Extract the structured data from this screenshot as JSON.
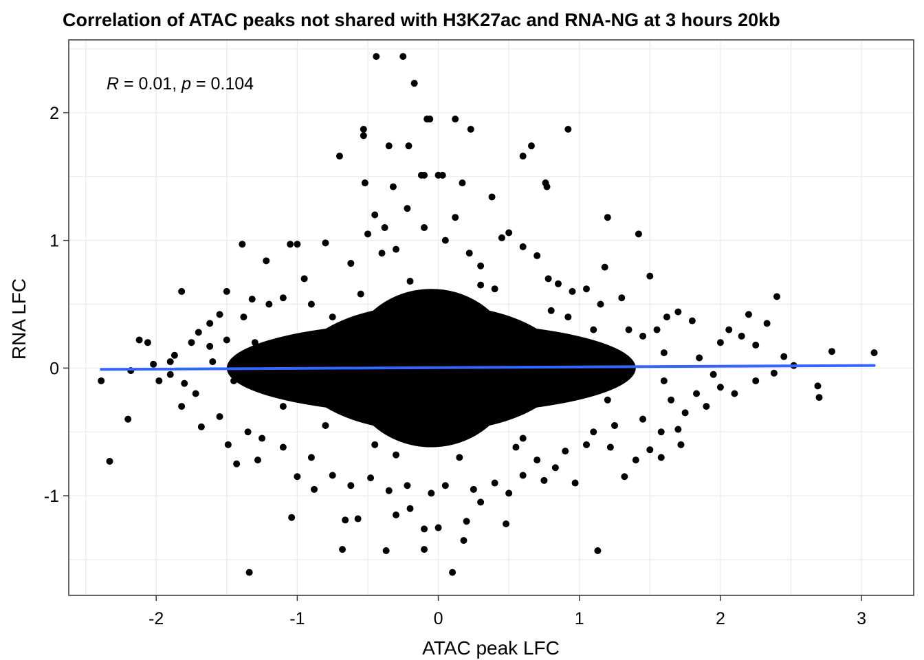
{
  "chart_data": {
    "type": "scatter",
    "title": "Correlation of ATAC peaks not shared with H3K27ac and RNA-NG  at 3 hours 20kb",
    "xlabel": "ATAC peak LFC",
    "ylabel": "RNA LFC",
    "xlim": [
      -2.62,
      3.37
    ],
    "ylim": [
      -1.78,
      2.57
    ],
    "xticks": [
      -2,
      -1,
      0,
      1,
      2,
      3
    ],
    "xtick_labels": [
      "-2",
      "-1",
      "0",
      "1",
      "2",
      "3"
    ],
    "yticks": [
      -1,
      0,
      1,
      2
    ],
    "ytick_labels": [
      "-1",
      "0",
      "1",
      "2"
    ],
    "grid": true,
    "annotation": {
      "r_symbol": "R",
      "r_text": " = 0.01, ",
      "p_symbol": "p",
      "p_text": " = 0.104"
    },
    "fit_line": {
      "color": "#3366ff",
      "x": [
        -2.39,
        3.09
      ],
      "y": [
        -0.01,
        0.02
      ]
    },
    "point_color": "#000000",
    "core_cloud": {
      "center": [
        -0.05,
        0.0
      ],
      "ellipses": [
        {
          "rx": 0.95,
          "ry": 0.5
        },
        {
          "rx": 1.45,
          "ry": 0.36
        },
        {
          "rx": 0.6,
          "ry": 0.62
        }
      ]
    },
    "points": [
      [
        -0.44,
        2.44
      ],
      [
        -0.25,
        2.44
      ],
      [
        -0.17,
        2.23
      ],
      [
        -0.08,
        1.95
      ],
      [
        -0.06,
        1.95
      ],
      [
        0.12,
        1.95
      ],
      [
        0.23,
        1.87
      ],
      [
        0.92,
        1.87
      ],
      [
        -0.53,
        1.87
      ],
      [
        -0.53,
        1.82
      ],
      [
        -0.35,
        1.74
      ],
      [
        -0.21,
        1.74
      ],
      [
        0.66,
        1.74
      ],
      [
        -0.7,
        1.66
      ],
      [
        0.6,
        1.66
      ],
      [
        -0.12,
        1.51
      ],
      [
        -0.1,
        1.51
      ],
      [
        0.0,
        1.51
      ],
      [
        0.03,
        1.51
      ],
      [
        0.17,
        1.45
      ],
      [
        0.76,
        1.45
      ],
      [
        -0.52,
        1.45
      ],
      [
        0.77,
        1.42
      ],
      [
        -0.32,
        1.42
      ],
      [
        0.38,
        1.34
      ],
      [
        -1.0,
        0.97
      ],
      [
        -1.05,
        0.97
      ],
      [
        -1.39,
        0.97
      ],
      [
        -0.8,
        0.98
      ],
      [
        1.42,
        1.05
      ],
      [
        1.18,
        0.79
      ],
      [
        1.5,
        0.72
      ],
      [
        1.2,
        1.18
      ],
      [
        -1.22,
        0.84
      ],
      [
        -1.82,
        0.6
      ],
      [
        -1.5,
        0.6
      ],
      [
        -1.32,
        0.54
      ],
      [
        2.4,
        0.56
      ],
      [
        2.33,
        0.35
      ],
      [
        2.2,
        0.42
      ],
      [
        1.8,
        0.37
      ],
      [
        1.62,
        0.4
      ],
      [
        1.7,
        0.44
      ],
      [
        2.06,
        0.3
      ],
      [
        2.15,
        0.25
      ],
      [
        2.0,
        0.2
      ],
      [
        2.25,
        0.18
      ],
      [
        2.45,
        0.09
      ],
      [
        2.52,
        0.02
      ],
      [
        2.38,
        -0.04
      ],
      [
        2.79,
        0.13
      ],
      [
        3.09,
        0.12
      ],
      [
        2.69,
        -0.14
      ],
      [
        2.7,
        -0.23
      ],
      [
        2.25,
        -0.1
      ],
      [
        2.1,
        -0.2
      ],
      [
        1.9,
        -0.3
      ],
      [
        1.75,
        -0.35
      ],
      [
        1.7,
        -0.48
      ],
      [
        1.72,
        -0.6
      ],
      [
        1.58,
        -0.5
      ],
      [
        1.5,
        -0.64
      ],
      [
        1.58,
        -0.7
      ],
      [
        1.4,
        -0.72
      ],
      [
        1.32,
        -0.85
      ],
      [
        1.22,
        -0.62
      ],
      [
        1.05,
        -0.6
      ],
      [
        0.97,
        -0.9
      ],
      [
        0.83,
        -0.78
      ],
      [
        0.75,
        -0.88
      ],
      [
        0.5,
        -0.98
      ],
      [
        0.48,
        -1.22
      ],
      [
        0.2,
        -1.2
      ],
      [
        0.18,
        -1.35
      ],
      [
        0.1,
        -1.6
      ],
      [
        1.13,
        -1.43
      ],
      [
        0.0,
        -1.25
      ],
      [
        -0.1,
        -1.26
      ],
      [
        -0.2,
        -1.1
      ],
      [
        -0.3,
        -1.15
      ],
      [
        -0.1,
        -1.42
      ],
      [
        -0.37,
        -1.43
      ],
      [
        -0.57,
        -1.18
      ],
      [
        -0.66,
        -1.19
      ],
      [
        -0.68,
        -1.42
      ],
      [
        -1.04,
        -1.17
      ],
      [
        -1.34,
        -1.6
      ],
      [
        -0.88,
        -0.95
      ],
      [
        -1.0,
        -0.85
      ],
      [
        -1.28,
        -0.72
      ],
      [
        -1.43,
        -0.75
      ],
      [
        -1.49,
        -0.6
      ],
      [
        -1.68,
        -0.46
      ],
      [
        -1.82,
        -0.3
      ],
      [
        -2.33,
        -0.73
      ],
      [
        -2.2,
        -0.4
      ],
      [
        -2.39,
        -0.1
      ],
      [
        -2.12,
        0.22
      ],
      [
        -2.06,
        0.2
      ],
      [
        -2.18,
        -0.02
      ],
      [
        -2.02,
        0.03
      ],
      [
        -1.9,
        0.05
      ],
      [
        -1.87,
        0.1
      ],
      [
        -1.75,
        0.2
      ],
      [
        -1.7,
        0.28
      ],
      [
        -1.62,
        0.35
      ],
      [
        -1.55,
        0.42
      ],
      [
        -1.62,
        0.17
      ],
      [
        -1.5,
        0.22
      ],
      [
        -1.38,
        0.4
      ],
      [
        -1.2,
        0.5
      ],
      [
        -1.1,
        0.55
      ],
      [
        -0.95,
        0.7
      ],
      [
        -0.62,
        0.82
      ],
      [
        -0.5,
        1.05
      ],
      [
        -0.45,
        1.2
      ],
      [
        -0.38,
        1.1
      ],
      [
        -0.4,
        0.9
      ],
      [
        -0.3,
        0.93
      ],
      [
        -0.22,
        1.25
      ],
      [
        -0.1,
        1.1
      ],
      [
        0.05,
        1.0
      ],
      [
        0.12,
        1.18
      ],
      [
        0.22,
        0.9
      ],
      [
        0.3,
        0.8
      ],
      [
        0.45,
        1.02
      ],
      [
        0.5,
        1.06
      ],
      [
        0.6,
        0.95
      ],
      [
        0.7,
        0.88
      ],
      [
        0.78,
        0.7
      ],
      [
        0.85,
        0.66
      ],
      [
        0.95,
        0.6
      ],
      [
        1.05,
        0.62
      ],
      [
        1.15,
        0.5
      ],
      [
        1.3,
        0.55
      ],
      [
        1.35,
        0.3
      ],
      [
        1.45,
        0.25
      ],
      [
        1.55,
        0.3
      ],
      [
        1.6,
        0.12
      ],
      [
        1.85,
        0.08
      ],
      [
        1.95,
        -0.05
      ],
      [
        2.0,
        -0.15
      ],
      [
        1.83,
        -0.2
      ],
      [
        1.65,
        -0.25
      ],
      [
        1.45,
        -0.4
      ],
      [
        1.25,
        -0.45
      ],
      [
        1.1,
        -0.5
      ],
      [
        0.9,
        -0.65
      ],
      [
        0.7,
        -0.72
      ],
      [
        0.6,
        -0.84
      ],
      [
        0.4,
        -0.9
      ],
      [
        0.3,
        -1.05
      ],
      [
        0.25,
        -0.95
      ],
      [
        0.05,
        -0.92
      ],
      [
        -0.05,
        -0.98
      ],
      [
        -0.22,
        -0.92
      ],
      [
        -0.35,
        -0.96
      ],
      [
        -0.48,
        -0.86
      ],
      [
        -0.62,
        -0.92
      ],
      [
        -0.75,
        -0.84
      ],
      [
        -0.9,
        -0.7
      ],
      [
        -1.1,
        -0.62
      ],
      [
        -1.25,
        -0.55
      ],
      [
        -1.35,
        -0.5
      ],
      [
        -1.55,
        -0.38
      ],
      [
        -1.72,
        -0.2
      ],
      [
        -1.8,
        -0.12
      ],
      [
        -1.9,
        -0.05
      ],
      [
        -1.98,
        -0.1
      ],
      [
        -1.6,
        0.05
      ],
      [
        -0.9,
        0.5
      ],
      [
        0.92,
        0.4
      ],
      [
        1.1,
        0.3
      ],
      [
        -1.1,
        -0.3
      ],
      [
        0.6,
        -0.55
      ],
      [
        -0.55,
        0.58
      ],
      [
        0.4,
        0.62
      ],
      [
        -0.3,
        -0.68
      ],
      [
        0.15,
        -0.7
      ],
      [
        -0.75,
        0.4
      ],
      [
        1.2,
        -0.25
      ],
      [
        -1.3,
        0.2
      ],
      [
        0.8,
        0.45
      ],
      [
        -0.8,
        -0.45
      ],
      [
        1.6,
        -0.1
      ],
      [
        -1.45,
        -0.1
      ],
      [
        0.3,
        0.65
      ],
      [
        -0.2,
        0.68
      ],
      [
        0.55,
        -0.62
      ],
      [
        -0.45,
        -0.6
      ]
    ]
  }
}
